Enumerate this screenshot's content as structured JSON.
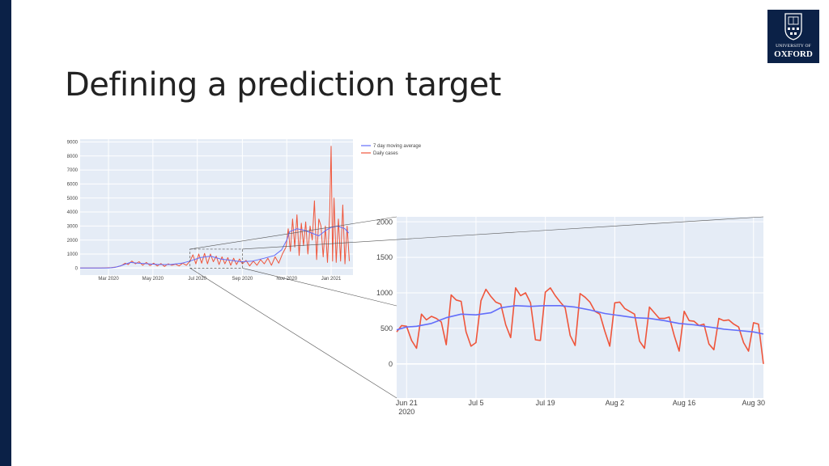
{
  "slide": {
    "title": "Defining a prediction target",
    "logo": {
      "line1": "UNIVERSITY OF",
      "line2": "OXFORD",
      "icon": "oxford-crest-icon"
    },
    "colors": {
      "navy": "#0b2147",
      "plot_bg": "#e5ecf6",
      "average": "#636efa",
      "daily": "#ef553b"
    }
  },
  "chart_data": [
    {
      "type": "line",
      "legend": {
        "placement": "outside-top-right",
        "entries": [
          "7 day moving average",
          "Daily cases"
        ]
      },
      "x_ticks": [
        {
          "label": "Mar 2020",
          "x": "2020-03-01"
        },
        {
          "label": "May 2020",
          "x": "2020-05-01"
        },
        {
          "label": "Jul 2020",
          "x": "2020-07-01"
        },
        {
          "label": "Sep 2020",
          "x": "2020-09-01"
        },
        {
          "label": "Nov 2020",
          "x": "2020-11-01"
        },
        {
          "label": "Jan 2021",
          "x": "2021-01-01"
        }
      ],
      "xlim": [
        "2020-01-22",
        "2021-01-31"
      ],
      "y_ticks": [
        0,
        1000,
        2000,
        3000,
        4000,
        5000,
        6000,
        7000,
        8000,
        9000
      ],
      "ylim": [
        -500,
        9200
      ],
      "zoom_window": {
        "x": [
          "2020-06-21",
          "2020-09-01"
        ],
        "y": [
          0,
          1350
        ]
      },
      "series": [
        {
          "name": "7 day moving average",
          "x": [
            "2020-01-22",
            "2020-02-15",
            "2020-03-01",
            "2020-03-10",
            "2020-03-20",
            "2020-03-31",
            "2020-04-10",
            "2020-04-25",
            "2020-05-10",
            "2020-05-25",
            "2020-06-10",
            "2020-06-21",
            "2020-07-05",
            "2020-07-19",
            "2020-08-02",
            "2020-08-16",
            "2020-08-30",
            "2020-09-15",
            "2020-10-01",
            "2020-10-15",
            "2020-10-25",
            "2020-11-01",
            "2020-11-05",
            "2020-11-15",
            "2020-11-25",
            "2020-12-05",
            "2020-12-15",
            "2020-12-25",
            "2021-01-01",
            "2021-01-10",
            "2021-01-20",
            "2021-01-25"
          ],
          "y": [
            0,
            0,
            0,
            50,
            200,
            400,
            350,
            300,
            250,
            250,
            350,
            500,
            750,
            850,
            650,
            550,
            450,
            500,
            700,
            900,
            1300,
            2000,
            2600,
            2800,
            2700,
            2500,
            2300,
            2700,
            2900,
            3000,
            2800,
            2500
          ]
        },
        {
          "name": "Daily cases",
          "x": [
            "2020-01-22",
            "2020-02-20",
            "2020-03-05",
            "2020-03-12",
            "2020-03-18",
            "2020-03-24",
            "2020-03-28",
            "2020-04-02",
            "2020-04-07",
            "2020-04-12",
            "2020-04-17",
            "2020-04-22",
            "2020-04-27",
            "2020-05-02",
            "2020-05-07",
            "2020-05-12",
            "2020-05-17",
            "2020-05-22",
            "2020-05-27",
            "2020-06-01",
            "2020-06-06",
            "2020-06-11",
            "2020-06-16",
            "2020-06-21",
            "2020-06-25",
            "2020-06-29",
            "2020-07-03",
            "2020-07-07",
            "2020-07-11",
            "2020-07-15",
            "2020-07-19",
            "2020-07-23",
            "2020-07-27",
            "2020-07-31",
            "2020-08-04",
            "2020-08-08",
            "2020-08-12",
            "2020-08-16",
            "2020-08-20",
            "2020-08-24",
            "2020-08-28",
            "2020-09-01",
            "2020-09-06",
            "2020-09-11",
            "2020-09-16",
            "2020-09-21",
            "2020-09-26",
            "2020-10-01",
            "2020-10-06",
            "2020-10-11",
            "2020-10-16",
            "2020-10-21",
            "2020-10-26",
            "2020-10-31",
            "2020-11-03",
            "2020-11-06",
            "2020-11-09",
            "2020-11-12",
            "2020-11-15",
            "2020-11-18",
            "2020-11-21",
            "2020-11-24",
            "2020-11-27",
            "2020-11-30",
            "2020-12-03",
            "2020-12-06",
            "2020-12-09",
            "2020-12-12",
            "2020-12-15",
            "2020-12-18",
            "2020-12-21",
            "2020-12-24",
            "2020-12-27",
            "2020-12-30",
            "2021-01-01",
            "2021-01-03",
            "2021-01-05",
            "2021-01-08",
            "2021-01-11",
            "2021-01-14",
            "2021-01-17",
            "2021-01-20",
            "2021-01-23",
            "2021-01-26"
          ],
          "y": [
            0,
            0,
            30,
            80,
            150,
            350,
            250,
            500,
            300,
            450,
            200,
            400,
            180,
            350,
            150,
            320,
            120,
            300,
            200,
            280,
            150,
            350,
            200,
            500,
            950,
            300,
            1000,
            350,
            1050,
            300,
            1000,
            450,
            850,
            250,
            800,
            300,
            750,
            200,
            700,
            250,
            650,
            300,
            550,
            150,
            500,
            200,
            600,
            300,
            700,
            200,
            800,
            350,
            1000,
            1500,
            2800,
            1200,
            3500,
            1500,
            3800,
            900,
            3200,
            1600,
            3300,
            1000,
            3000,
            2000,
            4800,
            600,
            3500,
            3000,
            800,
            3000,
            400,
            3800,
            8700,
            500,
            5000,
            400,
            3500,
            500,
            4500,
            300,
            3000,
            500
          ]
        }
      ]
    },
    {
      "type": "line",
      "x_ticks": [
        {
          "label": "Jun 21",
          "sublabel": "2020",
          "x": "2020-06-21"
        },
        {
          "label": "Jul 5",
          "x": "2020-07-05"
        },
        {
          "label": "Jul 19",
          "x": "2020-07-19"
        },
        {
          "label": "Aug 2",
          "x": "2020-08-02"
        },
        {
          "label": "Aug 16",
          "x": "2020-08-16"
        },
        {
          "label": "Aug 30",
          "x": "2020-08-30"
        }
      ],
      "xlim": [
        "2020-06-19",
        "2020-09-01"
      ],
      "y_ticks": [
        0,
        500,
        1000,
        1500,
        2000
      ],
      "ylim": [
        -480,
        2070
      ],
      "series": [
        {
          "name": "7 day moving average",
          "x": [
            "2020-06-19",
            "2020-06-21",
            "2020-06-23",
            "2020-06-26",
            "2020-06-29",
            "2020-07-02",
            "2020-07-05",
            "2020-07-08",
            "2020-07-10",
            "2020-07-13",
            "2020-07-16",
            "2020-07-19",
            "2020-07-22",
            "2020-07-25",
            "2020-07-28",
            "2020-07-31",
            "2020-08-03",
            "2020-08-06",
            "2020-08-09",
            "2020-08-12",
            "2020-08-15",
            "2020-08-18",
            "2020-08-21",
            "2020-08-24",
            "2020-08-27",
            "2020-08-30",
            "2020-09-01"
          ],
          "y": [
            480,
            520,
            530,
            570,
            650,
            700,
            690,
            720,
            790,
            820,
            810,
            820,
            820,
            800,
            760,
            710,
            680,
            650,
            640,
            610,
            570,
            550,
            520,
            490,
            470,
            450,
            420
          ]
        },
        {
          "name": "Daily cases",
          "x": [
            "2020-06-19",
            "2020-06-20",
            "2020-06-21",
            "2020-06-22",
            "2020-06-23",
            "2020-06-24",
            "2020-06-25",
            "2020-06-26",
            "2020-06-27",
            "2020-06-28",
            "2020-06-29",
            "2020-06-30",
            "2020-07-01",
            "2020-07-02",
            "2020-07-03",
            "2020-07-04",
            "2020-07-05",
            "2020-07-06",
            "2020-07-07",
            "2020-07-08",
            "2020-07-09",
            "2020-07-10",
            "2020-07-11",
            "2020-07-12",
            "2020-07-13",
            "2020-07-14",
            "2020-07-15",
            "2020-07-16",
            "2020-07-17",
            "2020-07-18",
            "2020-07-19",
            "2020-07-20",
            "2020-07-21",
            "2020-07-22",
            "2020-07-23",
            "2020-07-24",
            "2020-07-25",
            "2020-07-26",
            "2020-07-27",
            "2020-07-28",
            "2020-07-29",
            "2020-07-30",
            "2020-07-31",
            "2020-08-01",
            "2020-08-02",
            "2020-08-03",
            "2020-08-04",
            "2020-08-05",
            "2020-08-06",
            "2020-08-07",
            "2020-08-08",
            "2020-08-09",
            "2020-08-10",
            "2020-08-11",
            "2020-08-12",
            "2020-08-13",
            "2020-08-14",
            "2020-08-15",
            "2020-08-16",
            "2020-08-17",
            "2020-08-18",
            "2020-08-19",
            "2020-08-20",
            "2020-08-21",
            "2020-08-22",
            "2020-08-23",
            "2020-08-24",
            "2020-08-25",
            "2020-08-26",
            "2020-08-27",
            "2020-08-28",
            "2020-08-29",
            "2020-08-30",
            "2020-08-31",
            "2020-09-01"
          ],
          "y": [
            450,
            540,
            530,
            330,
            220,
            700,
            620,
            670,
            640,
            590,
            270,
            970,
            900,
            880,
            450,
            250,
            300,
            890,
            1050,
            950,
            870,
            840,
            550,
            370,
            1070,
            960,
            1000,
            860,
            340,
            330,
            1010,
            1070,
            960,
            870,
            790,
            400,
            260,
            990,
            940,
            870,
            740,
            700,
            460,
            250,
            860,
            870,
            780,
            740,
            700,
            320,
            220,
            800,
            720,
            640,
            640,
            660,
            400,
            180,
            740,
            610,
            600,
            540,
            560,
            280,
            200,
            640,
            610,
            620,
            560,
            520,
            300,
            180,
            580,
            560,
            0
          ]
        }
      ]
    }
  ]
}
